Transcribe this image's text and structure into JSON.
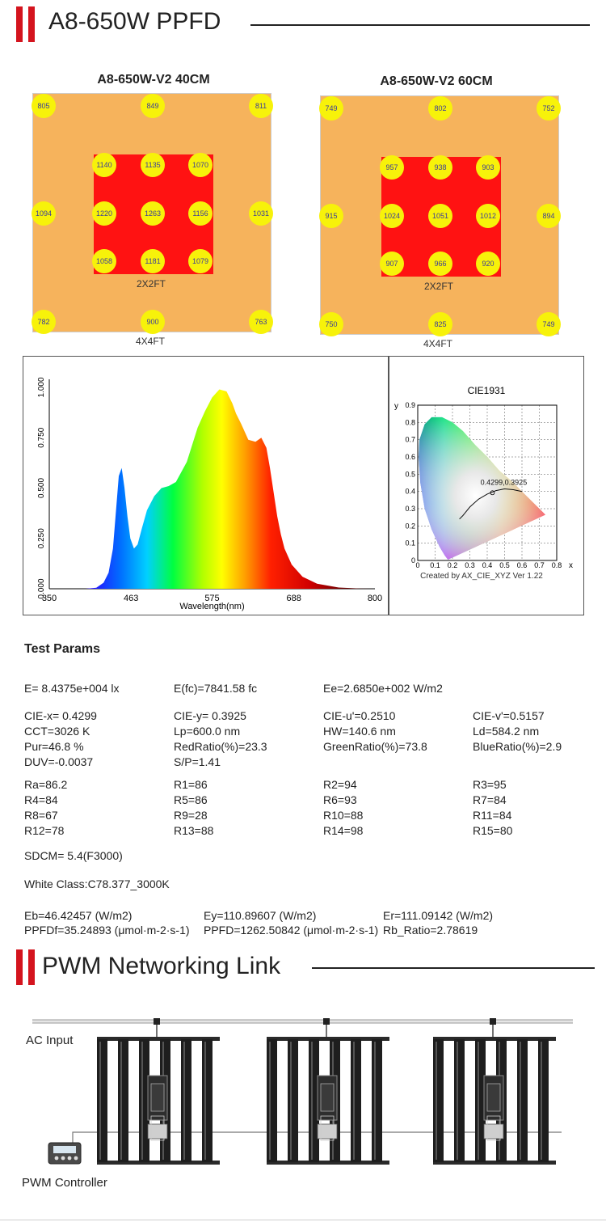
{
  "sections": {
    "ppfd_title": "A8-650W PPFD",
    "network_title": "PWM Networking Link"
  },
  "maps": [
    {
      "title": "A8-650W-V2  40CM",
      "outer_label": "4X4FT",
      "inner_label": "2X2FT",
      "outer_values": [
        "805",
        "849",
        "811",
        "1094",
        "1031",
        "782",
        "900",
        "763"
      ],
      "inner_values": [
        "1140",
        "1135",
        "1070",
        "1220",
        "1263",
        "1156",
        "1058",
        "1181",
        "1079"
      ]
    },
    {
      "title": "A8-650W-V2  60CM",
      "outer_label": "4X4FT",
      "inner_label": "2X2FT",
      "outer_values": [
        "749",
        "802",
        "752",
        "915",
        "894",
        "750",
        "825",
        "749"
      ],
      "inner_values": [
        "957",
        "938",
        "903",
        "1024",
        "1051",
        "1012",
        "907",
        "966",
        "920"
      ]
    }
  ],
  "chart_data": [
    {
      "type": "line",
      "title": "",
      "xlabel": "Wavelength(nm)",
      "ylabel": "",
      "xlim": [
        350,
        800
      ],
      "ylim": [
        0,
        1
      ],
      "x_ticks": [
        "350",
        "463",
        "575",
        "688",
        "800"
      ],
      "y_ticks": [
        "0.000",
        "0.250",
        "0.500",
        "0.750",
        "1.000"
      ],
      "series": [
        {
          "x": [
            350,
            400,
            415,
            425,
            432,
            438,
            442,
            446,
            450,
            454,
            458,
            462,
            467,
            472,
            478,
            485,
            495,
            505,
            515,
            525,
            540,
            555,
            565,
            575,
            585,
            595,
            603,
            608,
            615,
            625,
            635,
            643,
            650,
            655,
            660,
            665,
            670,
            675,
            685,
            700,
            720,
            750,
            780,
            800
          ],
          "y": [
            0.0,
            0.0,
            0.005,
            0.03,
            0.08,
            0.2,
            0.38,
            0.56,
            0.6,
            0.5,
            0.36,
            0.25,
            0.2,
            0.22,
            0.3,
            0.39,
            0.46,
            0.5,
            0.51,
            0.53,
            0.63,
            0.8,
            0.88,
            0.95,
            0.99,
            0.98,
            0.92,
            0.87,
            0.82,
            0.74,
            0.73,
            0.75,
            0.7,
            0.6,
            0.48,
            0.36,
            0.27,
            0.2,
            0.12,
            0.06,
            0.025,
            0.006,
            0.001,
            0.0
          ]
        }
      ]
    },
    {
      "type": "scatter",
      "title": "CIE1931",
      "xlabel": "x",
      "ylabel": "y",
      "xlim": [
        0,
        0.8
      ],
      "ylim": [
        0,
        0.9
      ],
      "x_ticks": [
        "0",
        "0.1",
        "0.2",
        "0.3",
        "0.4",
        "0.5",
        "0.6",
        "0.7",
        "0.8"
      ],
      "y_ticks": [
        "0",
        "0.1",
        "0.2",
        "0.3",
        "0.4",
        "0.5",
        "0.6",
        "0.7",
        "0.8",
        "0.9"
      ],
      "point": {
        "x": 0.4299,
        "y": 0.3925,
        "label": "0.4299,0.3925"
      },
      "locus": {
        "x": [
          0.175,
          0.17,
          0.155,
          0.125,
          0.08,
          0.04,
          0.015,
          0.005,
          0.01,
          0.04,
          0.08,
          0.14,
          0.2,
          0.26,
          0.33,
          0.4,
          0.47,
          0.54,
          0.6,
          0.66,
          0.72,
          0.735,
          0.175
        ],
        "y": [
          0.005,
          0.01,
          0.03,
          0.08,
          0.18,
          0.3,
          0.45,
          0.6,
          0.7,
          0.79,
          0.83,
          0.83,
          0.8,
          0.75,
          0.67,
          0.6,
          0.52,
          0.46,
          0.4,
          0.34,
          0.28,
          0.265,
          0.005
        ]
      },
      "planckian": {
        "x": [
          0.24,
          0.26,
          0.3,
          0.35,
          0.4,
          0.45,
          0.5,
          0.55,
          0.6
        ],
        "y": [
          0.24,
          0.26,
          0.31,
          0.355,
          0.385,
          0.405,
          0.415,
          0.41,
          0.4
        ]
      },
      "footnote": "Created by AX_CIE_XYZ Ver 1.22"
    }
  ],
  "test_params": {
    "title": "Test Params",
    "rows": [
      [
        "E=  8.4375e+004 lx",
        "E(fc)=7841.58 fc",
        "Ee=2.6850e+002 W/m2",
        ""
      ],
      [
        "CIE-x= 0.4299",
        "CIE-y= 0.3925",
        "CIE-u'=0.2510",
        "CIE-v'=0.5157"
      ],
      [
        "CCT=3026 K",
        "Lp=600.0 nm",
        "HW=140.6 nm",
        "Ld=584.2 nm"
      ],
      [
        "Pur=46.8 %",
        "RedRatio(%)=23.3",
        "GreenRatio(%)=73.8",
        "BlueRatio(%)=2.9"
      ],
      [
        "DUV=-0.0037",
        "S/P=1.41",
        "",
        ""
      ],
      [
        "Ra=86.2",
        "R1=86",
        "R2=94",
        "R3=95"
      ],
      [
        "R4=84",
        "R5=86",
        "R6=93",
        "R7=84"
      ],
      [
        "R8=67",
        "R9=28",
        "R10=88",
        "R11=84"
      ],
      [
        "R12=78",
        "R13=88",
        "R14=98",
        "R15=80"
      ]
    ],
    "sdcm": "SDCM= 5.4(F3000)",
    "white_class": "White Class:C78.377_3000K",
    "energy": [
      "Eb=46.42457 (W/m2)",
      "Ey=110.89607 (W/m2)",
      "Er=111.09142 (W/m2)"
    ],
    "ppfd": [
      "PPFDf=35.24893 (μmol·m-2·s-1)",
      "PPFD=1262.50842 (μmol·m-2·s-1)",
      "Rb_Ratio=2.78619"
    ]
  },
  "network": {
    "ac_label": "AC Input",
    "controller_label": "PWM Controller"
  }
}
